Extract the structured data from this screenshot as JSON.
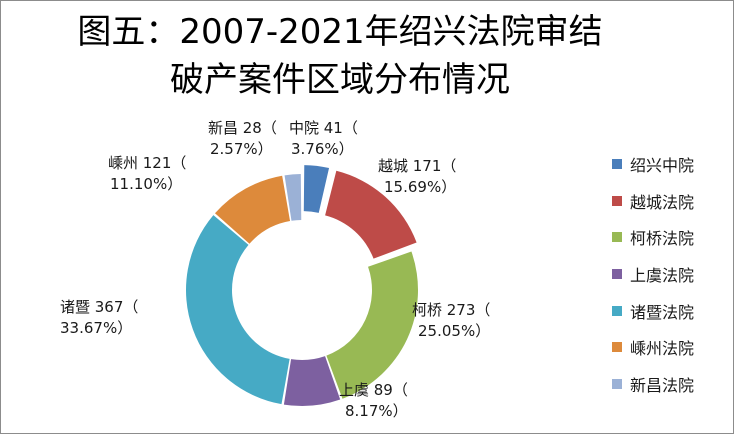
{
  "chart_data": {
    "type": "pie",
    "variant": "donut",
    "title": [
      "图五：2007-2021年绍兴法院审结",
      "破产案件区域分布情况"
    ],
    "legend_position": "right",
    "slices": [
      {
        "legend": "绍兴中院",
        "label_line1": "中院 41（",
        "label_line2": "3.76%）",
        "value": 41,
        "percent": 3.76,
        "color": "#4a7ebb",
        "exploded": true
      },
      {
        "legend": "越城法院",
        "label_line1": "越城 171（",
        "label_line2": "15.69%）",
        "value": 171,
        "percent": 15.69,
        "color": "#be4b48",
        "exploded": true
      },
      {
        "legend": "柯桥法院",
        "label_line1": "柯桥 273（",
        "label_line2": "25.05%）",
        "value": 273,
        "percent": 25.05,
        "color": "#98b954",
        "exploded": false
      },
      {
        "legend": "上虞法院",
        "label_line1": "上虞 89（",
        "label_line2": "8.17%）",
        "value": 89,
        "percent": 8.17,
        "color": "#7d60a0",
        "exploded": false
      },
      {
        "legend": "诸暨法院",
        "label_line1": "诸暨 367（",
        "label_line2": "33.67%）",
        "value": 367,
        "percent": 33.67,
        "color": "#46aac5",
        "exploded": false
      },
      {
        "legend": "嵊州法院",
        "label_line1": "嵊州 121（",
        "label_line2": "11.10%）",
        "value": 121,
        "percent": 11.1,
        "color": "#dd8a3b",
        "exploded": false
      },
      {
        "legend": "新昌法院",
        "label_line1": "新昌 28（",
        "label_line2": "2.57%）",
        "value": 28,
        "percent": 2.57,
        "color": "#9bb1d6",
        "exploded": false
      }
    ]
  }
}
